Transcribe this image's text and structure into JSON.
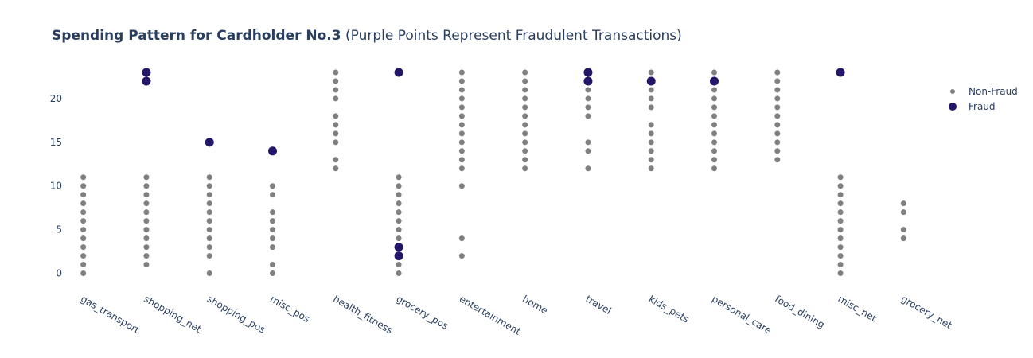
{
  "chart_data": {
    "type": "scatter",
    "title_bold": "Spending Pattern for Cardholder No.3",
    "title_rest": " (Purple Points Represent Fraudulent Transactions)",
    "xlabel": "",
    "ylabel": "",
    "ylim": [
      -1.5,
      24
    ],
    "yticks": [
      0,
      5,
      10,
      15,
      20
    ],
    "grid": false,
    "legend_position": "top-right",
    "categories": [
      "gas_transport",
      "shopping_net",
      "shopping_pos",
      "misc_pos",
      "health_fitness",
      "grocery_pos",
      "entertainment",
      "home",
      "travel",
      "kids_pets",
      "personal_care",
      "food_dining",
      "misc_net",
      "grocery_net"
    ],
    "series": [
      {
        "name": "Non-Fraud",
        "color": "#808080",
        "points": {
          "gas_transport": [
            0,
            1,
            2,
            3,
            4,
            5,
            6,
            7,
            8,
            9,
            10,
            11
          ],
          "shopping_net": [
            1,
            2,
            3,
            4,
            5,
            6,
            7,
            8,
            9,
            10,
            11
          ],
          "shopping_pos": [
            0,
            2,
            3,
            4,
            5,
            6,
            7,
            8,
            9,
            10,
            11
          ],
          "misc_pos": [
            0,
            1,
            3,
            4,
            5,
            6,
            7,
            9,
            10
          ],
          "health_fitness": [
            12,
            13,
            15,
            16,
            17,
            18,
            20,
            21,
            22,
            23
          ],
          "grocery_pos": [
            0,
            1,
            2,
            3,
            4,
            5,
            6,
            7,
            8,
            9,
            10,
            11
          ],
          "entertainment": [
            2,
            4,
            10,
            12,
            13,
            14,
            15,
            16,
            17,
            18,
            19,
            20,
            21,
            22,
            23
          ],
          "home": [
            12,
            13,
            14,
            15,
            16,
            17,
            18,
            19,
            20,
            21,
            22,
            23
          ],
          "travel": [
            12,
            14,
            15,
            18,
            19,
            20,
            21,
            22,
            23
          ],
          "kids_pets": [
            12,
            13,
            14,
            15,
            16,
            17,
            19,
            20,
            21,
            22,
            23
          ],
          "personal_care": [
            12,
            13,
            14,
            15,
            16,
            17,
            18,
            19,
            20,
            21,
            22,
            23
          ],
          "food_dining": [
            13,
            14,
            15,
            16,
            17,
            18,
            19,
            20,
            21,
            22,
            23
          ],
          "misc_net": [
            0,
            1,
            2,
            3,
            4,
            5,
            6,
            7,
            8,
            9,
            10,
            11
          ],
          "grocery_net": [
            4,
            5,
            7,
            8
          ]
        }
      },
      {
        "name": "Fraud",
        "color": "#221668",
        "points": {
          "shopping_net": [
            22,
            23
          ],
          "shopping_pos": [
            15
          ],
          "misc_pos": [
            14
          ],
          "grocery_pos": [
            2,
            3,
            23
          ],
          "travel": [
            22,
            23
          ],
          "kids_pets": [
            22
          ],
          "personal_care": [
            22
          ],
          "misc_net": [
            23
          ]
        }
      }
    ]
  }
}
